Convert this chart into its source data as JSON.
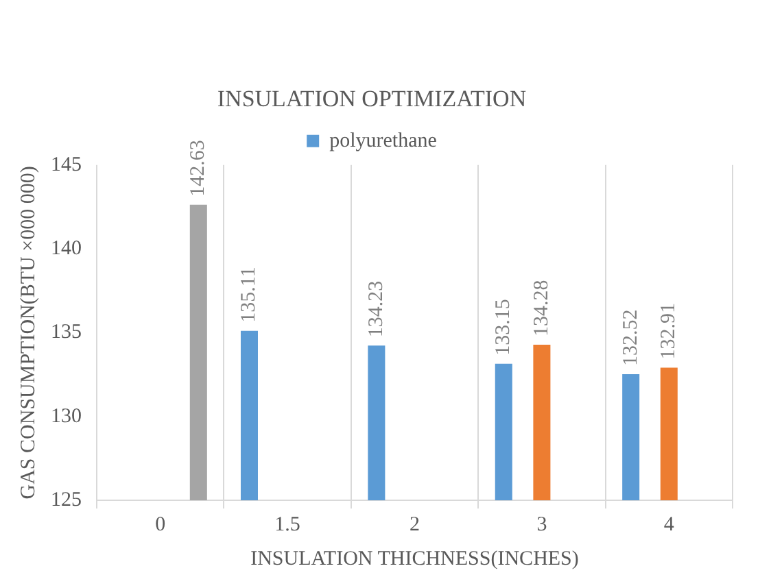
{
  "chart_data": {
    "type": "bar",
    "title": "INSULATION OPTIMIZATION",
    "xlabel": "INSULATION THICHNESS(INCHES)",
    "ylabel": "GAS CONSUMPTION(BTU ×000 000)",
    "categories": [
      "0",
      "1.5",
      "2",
      "3",
      "4"
    ],
    "series": [
      {
        "name": "polyurethane",
        "color": "#5b9bd5",
        "values": [
          null,
          135.11,
          134.23,
          133.15,
          132.52
        ]
      },
      {
        "color": "#ed7d31",
        "values": [
          null,
          null,
          null,
          134.28,
          132.91
        ]
      },
      {
        "color": "#a5a5a5",
        "values": [
          142.63,
          null,
          null,
          null,
          null
        ]
      }
    ],
    "ylim": [
      125,
      145
    ],
    "yticks": [
      125,
      130,
      135,
      140,
      145
    ],
    "grid": "x",
    "legend": "top",
    "data_labels": true
  }
}
